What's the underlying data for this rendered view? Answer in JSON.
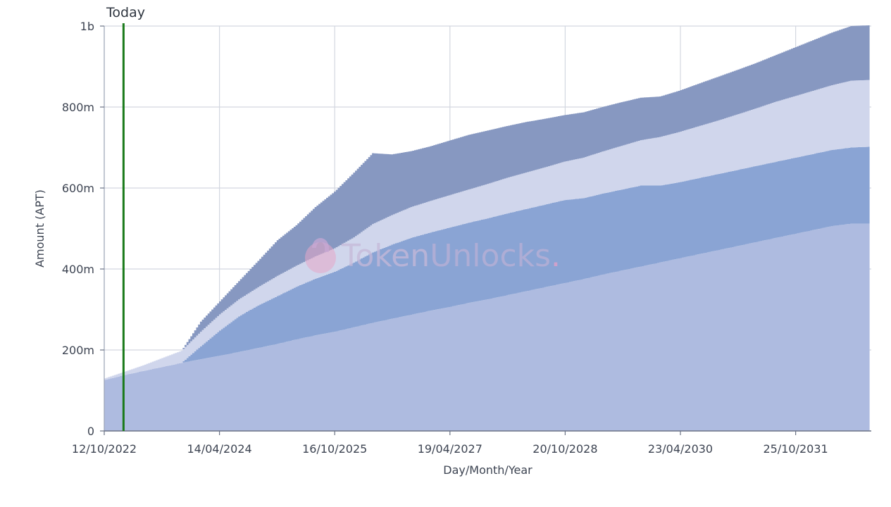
{
  "chart_data": {
    "type": "area",
    "stacked": true,
    "step": true,
    "xlabel": "Day/Month/Year",
    "ylabel": "Amount (APT)",
    "x_range": [
      "2022-10-12",
      "2032-10-20"
    ],
    "ylim": [
      0,
      1000000000
    ],
    "y_ticks": [
      {
        "value": 0,
        "label": "0"
      },
      {
        "value": 200000000,
        "label": "200m"
      },
      {
        "value": 400000000,
        "label": "400m"
      },
      {
        "value": 600000000,
        "label": "600m"
      },
      {
        "value": 800000000,
        "label": "800m"
      },
      {
        "value": 1000000000,
        "label": "1b"
      }
    ],
    "x_ticks": [
      {
        "date": "2022-10-12",
        "label": "12/10/2022"
      },
      {
        "date": "2024-04-14",
        "label": "14/04/2024"
      },
      {
        "date": "2025-10-16",
        "label": "16/10/2025"
      },
      {
        "date": "2027-04-19",
        "label": "19/04/2027"
      },
      {
        "date": "2028-10-20",
        "label": "20/10/2028"
      },
      {
        "date": "2030-04-23",
        "label": "23/04/2030"
      },
      {
        "date": "2031-10-25",
        "label": "25/10/2031"
      }
    ],
    "grid": true,
    "today": {
      "date": "2023-01-12",
      "label": "Today",
      "color": "#1a7a1a"
    },
    "watermark": {
      "brand_a": "Token",
      "brand_b": "Unlocks",
      "dot": "."
    },
    "x": [
      "2022-10-12",
      "2023-01-12",
      "2023-04-12",
      "2023-07-12",
      "2023-10-12",
      "2024-01-12",
      "2024-04-12",
      "2024-07-12",
      "2024-10-12",
      "2025-01-12",
      "2025-04-12",
      "2025-07-12",
      "2025-10-12",
      "2026-01-12",
      "2026-04-12",
      "2026-07-12",
      "2026-10-12",
      "2027-01-12",
      "2027-04-12",
      "2027-07-12",
      "2027-10-12",
      "2028-01-12",
      "2028-04-12",
      "2028-07-12",
      "2028-10-12",
      "2029-01-12",
      "2029-04-12",
      "2029-07-12",
      "2029-10-12",
      "2030-01-12",
      "2030-04-12",
      "2030-07-12",
      "2030-10-12",
      "2031-01-12",
      "2031-04-12",
      "2031-07-12",
      "2031-10-12",
      "2032-01-12",
      "2032-04-12",
      "2032-07-12",
      "2032-10-12"
    ],
    "series": [
      {
        "color": "#aebbe0",
        "values": [
          126,
          138,
          148,
          158,
          168,
          177,
          186,
          195,
          205,
          215,
          226,
          236,
          245,
          256,
          267,
          277,
          287,
          297,
          306,
          316,
          325,
          335,
          345,
          355,
          365,
          375,
          386,
          396,
          406,
          416,
          426,
          436,
          446,
          456,
          466,
          476,
          486,
          496,
          506,
          512,
          512
        ]
      },
      {
        "color": "#8aa4d4",
        "values": [
          0,
          0,
          0,
          0,
          0,
          32,
          62,
          88,
          105,
          118,
          130,
          140,
          148,
          160,
          174,
          183,
          190,
          193,
          196,
          198,
          200,
          202,
          203,
          204,
          205,
          200,
          200,
          200,
          200,
          190,
          188,
          188,
          188,
          188,
          188,
          188,
          188,
          188,
          188,
          188,
          190
        ]
      },
      {
        "color": "#d0d6ec",
        "values": [
          4,
          8,
          14,
          22,
          30,
          36,
          40,
          42,
          45,
          50,
          52,
          55,
          58,
          62,
          70,
          73,
          76,
          78,
          80,
          82,
          85,
          88,
          90,
          92,
          95,
          100,
          104,
          108,
          112,
          120,
          124,
          128,
          132,
          137,
          142,
          148,
          152,
          156,
          160,
          165,
          165
        ]
      },
      {
        "color": "#8798c1",
        "values": [
          0,
          0,
          0,
          0,
          0,
          25,
          32,
          45,
          65,
          88,
          100,
          122,
          140,
          160,
          175,
          150,
          138,
          135,
          135,
          135,
          132,
          128,
          125,
          120,
          115,
          112,
          110,
          108,
          105,
          100,
          102,
          105,
          108,
          110,
          112,
          115,
          120,
          125,
          130,
          135,
          135
        ]
      }
    ]
  }
}
